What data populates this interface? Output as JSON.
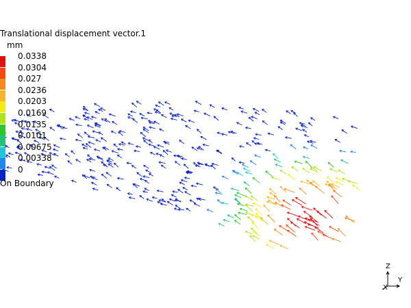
{
  "legend": {
    "title": "Translational displacement vector.1",
    "unit": "mm",
    "ticks": [
      "0.0338",
      "0.0304",
      "0.027",
      "0.0236",
      "0.0203",
      "0.0169",
      "0.0135",
      "0.0101",
      "0.00675",
      "0.00338",
      "0"
    ],
    "colors": [
      "#e01010",
      "#f24a10",
      "#f78a1a",
      "#f7b52a",
      "#f4ec14",
      "#b0e41a",
      "#2fc82a",
      "#1fc47a",
      "#1ec6d9",
      "#1f86ee",
      "#0c23c6"
    ],
    "footer": "On Boundary"
  },
  "triad": {
    "z": "Z",
    "y": "Y",
    "x": "X"
  }
}
